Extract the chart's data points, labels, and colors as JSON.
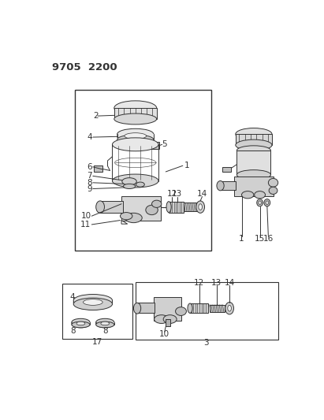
{
  "title_code": "9705 2200",
  "bg_color": "#ffffff",
  "lc": "#333333",
  "fig_width": 4.11,
  "fig_height": 5.33,
  "dpi": 100
}
